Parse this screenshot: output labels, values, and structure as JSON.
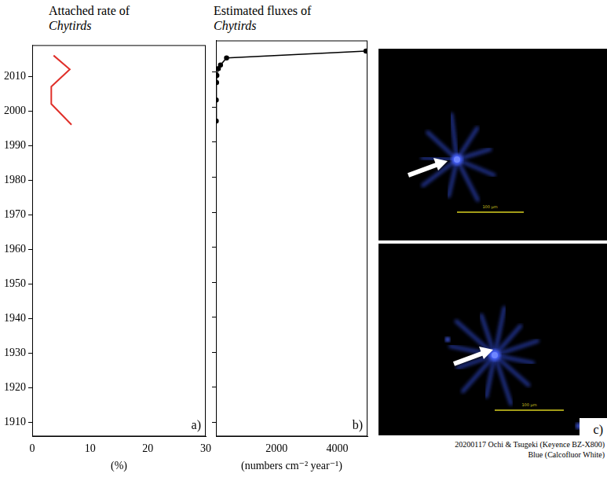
{
  "chart_data": [
    {
      "type": "line",
      "panel_label": "a)",
      "title": "Attached rate of Chytirds",
      "x_label": "(%)",
      "x": [
        3.7,
        6.5,
        3.3,
        3.3,
        6.8
      ],
      "y": [
        2016,
        2012,
        2007,
        2002,
        1996
      ],
      "color": "#e0302a",
      "marker": "none",
      "xlim": [
        0,
        30
      ],
      "xticks": [
        0,
        10,
        20,
        30
      ],
      "ylim": [
        1906,
        2019
      ],
      "yticks": [
        1910,
        1920,
        1930,
        1940,
        1950,
        1960,
        1970,
        1980,
        1990,
        2000,
        2010
      ],
      "grid": false
    },
    {
      "type": "line",
      "panel_label": "b)",
      "title": "Estimated fluxes of Chytirds",
      "x_label": "(numbers cm⁻² year⁻¹)",
      "x": [
        10,
        10,
        20,
        30,
        80,
        150,
        350,
        4950
      ],
      "y": [
        1996,
        2002,
        2007,
        2009,
        2011,
        2012,
        2014,
        2016
      ],
      "color": "#000000",
      "marker": "circle",
      "xlim": [
        0,
        5000
      ],
      "xticks": [
        2000,
        4000
      ],
      "ylim": [
        1906,
        2019
      ],
      "yticks": [
        1910,
        1920,
        1930,
        1940,
        1950,
        1960,
        1970,
        1980,
        1990,
        2000,
        2010
      ],
      "grid": false,
      "tick_labels": "x"
    }
  ],
  "image_panel": {
    "panel_label": "c)",
    "scale_label": "100 μm",
    "caption": [
      "20200117  Ochi & Tsugeki (Keyence BZ-X800)",
      "Blue (Calcofluor White)"
    ]
  }
}
